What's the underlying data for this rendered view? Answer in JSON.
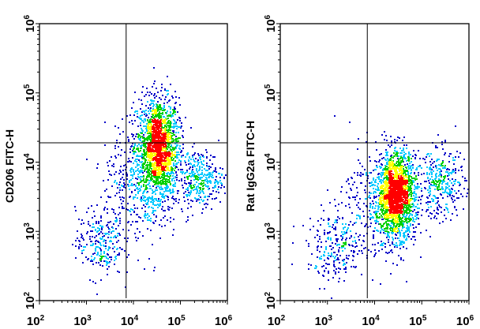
{
  "chart_data": [
    {
      "type": "scatter",
      "subtype": "flow-cytometry density dot plot",
      "xlabel": "",
      "ylabel": "CD206 FITC-H",
      "x_scale": "log",
      "y_scale": "log",
      "xlim": [
        100,
        1000000
      ],
      "ylim": [
        100,
        1000000
      ],
      "x_ticks": [
        "10^2",
        "10^3",
        "10^4",
        "10^5",
        "10^6"
      ],
      "y_ticks": [
        "10^2",
        "10^3",
        "10^4",
        "10^5",
        "10^6"
      ],
      "quadrant_gate": {
        "x": 7000,
        "y": 19000
      },
      "grid": false,
      "color_scale": [
        "#0000c8",
        "#00c8ff",
        "#00d000",
        "#ffff00",
        "#ff0000"
      ],
      "populations": [
        {
          "x_center": 33000,
          "y_center": 17000,
          "x_spread_decades": 0.22,
          "y_spread_decades": 0.35,
          "events": 1800
        },
        {
          "x_center": 250000,
          "y_center": 6000,
          "x_spread_decades": 0.25,
          "y_spread_decades": 0.2,
          "events": 350
        },
        {
          "x_center": 1800,
          "y_center": 700,
          "x_spread_decades": 0.25,
          "y_spread_decades": 0.25,
          "events": 250
        },
        {
          "x_center": 15000,
          "y_center": 5000,
          "x_spread_decades": 0.4,
          "y_spread_decades": 0.4,
          "events": 500
        }
      ]
    },
    {
      "type": "scatter",
      "subtype": "flow-cytometry density dot plot",
      "xlabel": "",
      "ylabel": "Rat IgG2a FITC-H",
      "x_scale": "log",
      "y_scale": "log",
      "xlim": [
        100,
        1000000
      ],
      "ylim": [
        100,
        1000000
      ],
      "x_ticks": [
        "10^2",
        "10^3",
        "10^4",
        "10^5",
        "10^6"
      ],
      "y_ticks": [
        "10^2",
        "10^3",
        "10^4",
        "10^5",
        "10^6"
      ],
      "quadrant_gate": {
        "x": 7000,
        "y": 19000
      },
      "grid": false,
      "color_scale": [
        "#0000c8",
        "#00c8ff",
        "#00d000",
        "#ffff00",
        "#ff0000"
      ],
      "populations": [
        {
          "x_center": 28000,
          "y_center": 3500,
          "x_spread_decades": 0.2,
          "y_spread_decades": 0.3,
          "events": 1800
        },
        {
          "x_center": 250000,
          "y_center": 5000,
          "x_spread_decades": 0.25,
          "y_spread_decades": 0.25,
          "events": 350
        },
        {
          "x_center": 1500,
          "y_center": 600,
          "x_spread_decades": 0.3,
          "y_spread_decades": 0.25,
          "events": 250
        },
        {
          "x_center": 12000,
          "y_center": 2500,
          "x_spread_decades": 0.4,
          "y_spread_decades": 0.4,
          "events": 400
        }
      ]
    }
  ]
}
